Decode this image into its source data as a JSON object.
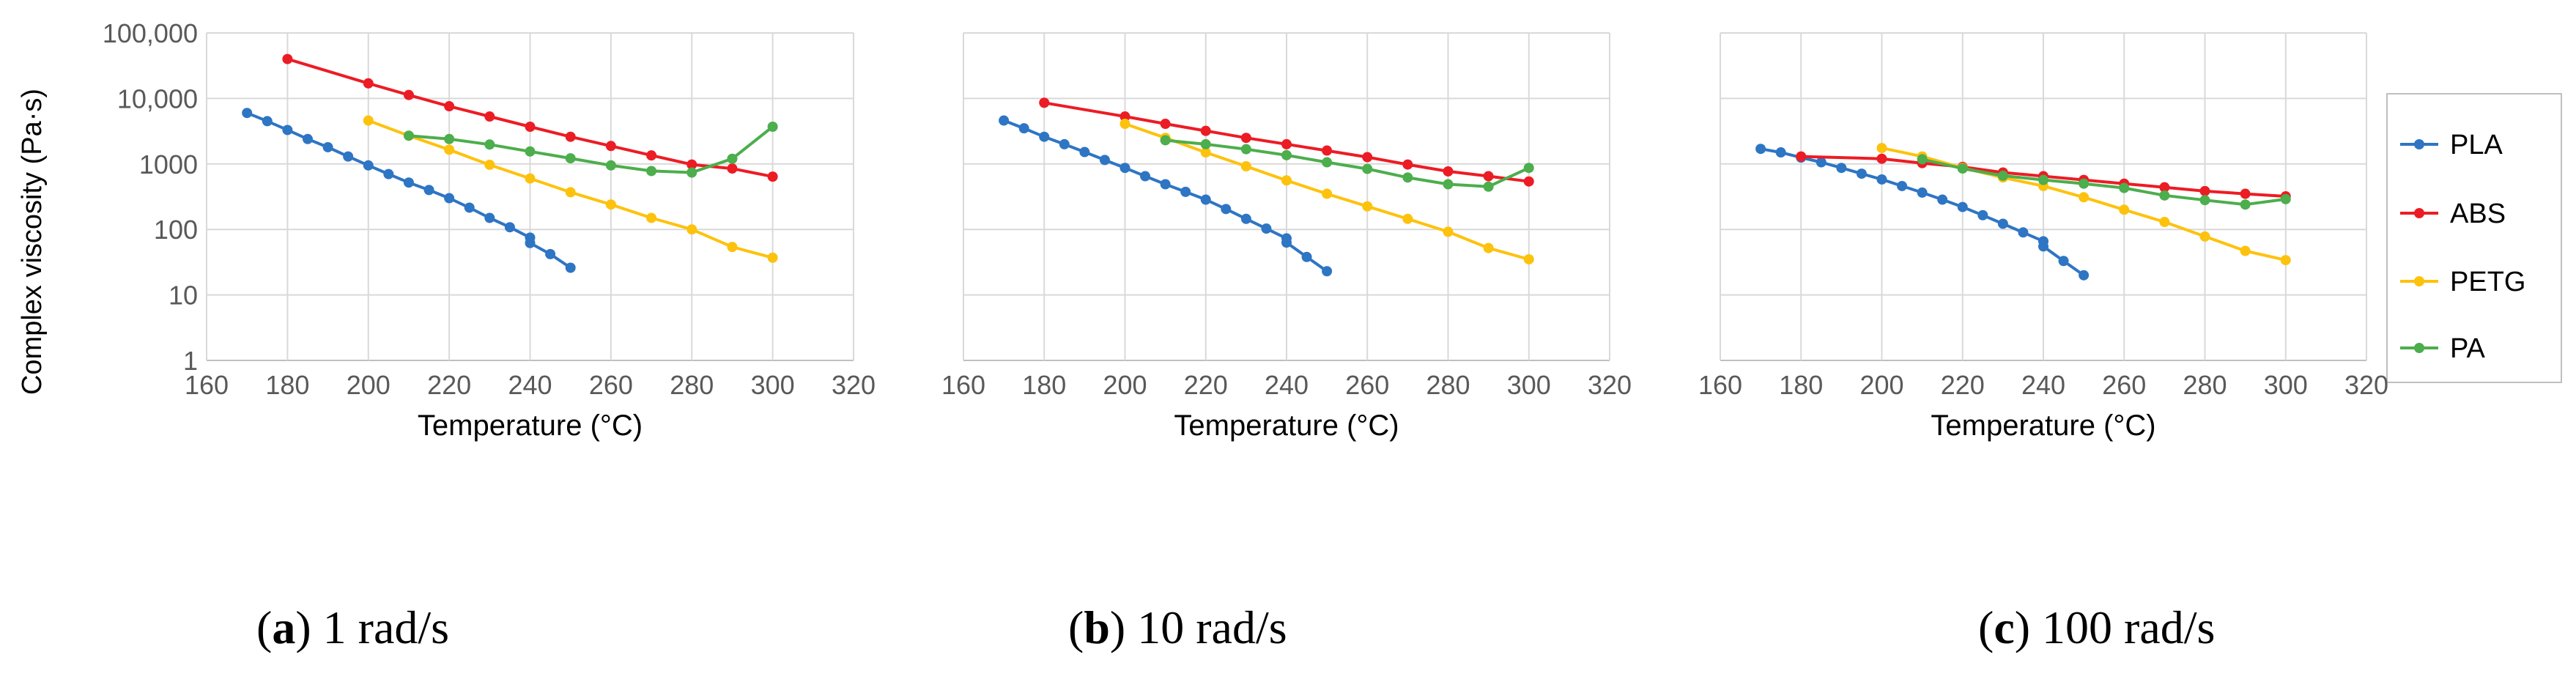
{
  "figure": {
    "ylabel": "Complex viscosity (Pa·s)",
    "legend_position": "right"
  },
  "colors": {
    "PLA": "#2e75c4",
    "ABS": "#ec1c24",
    "PETG": "#fdc20d",
    "PA": "#4cae4c",
    "grid": "#d9d9d9",
    "tick": "#595959",
    "legend_border": "#bfbfbf"
  },
  "chart_data": [
    {
      "type": "line",
      "panel": "a",
      "caption": {
        "letter": "a",
        "text": " 1 rad/s"
      },
      "xlabel": "Temperature (°C)",
      "ylabel": "Complex viscosity (Pa·s)",
      "xlim": [
        160,
        320
      ],
      "xticks": [
        160,
        180,
        200,
        220,
        240,
        260,
        280,
        300,
        320
      ],
      "ylim": [
        1,
        100000
      ],
      "yscale": "log",
      "yticks": [
        1,
        10,
        100,
        1000,
        10000,
        100000
      ],
      "ytick_labels": [
        "1",
        "10",
        "100",
        "1000",
        "10,000",
        "100,000"
      ],
      "grid": true,
      "series": [
        {
          "name": "PLA",
          "x": [
            170,
            175,
            180,
            185,
            190,
            195,
            200,
            205,
            210,
            215,
            220,
            225,
            230,
            235,
            240,
            240,
            245,
            250
          ],
          "y": [
            6000,
            4500,
            3300,
            2400,
            1800,
            1300,
            950,
            700,
            520,
            400,
            300,
            215,
            150,
            108,
            75,
            62,
            42,
            26
          ]
        },
        {
          "name": "ABS",
          "x": [
            180,
            200,
            210,
            220,
            230,
            240,
            250,
            260,
            270,
            280,
            290,
            300
          ],
          "y": [
            40000,
            17000,
            11300,
            7600,
            5300,
            3700,
            2600,
            1880,
            1350,
            980,
            850,
            640
          ]
        },
        {
          "name": "PETG",
          "x": [
            200,
            210,
            220,
            230,
            240,
            250,
            260,
            270,
            280,
            290,
            300
          ],
          "y": [
            4600,
            2700,
            1650,
            970,
            600,
            370,
            240,
            150,
            100,
            54,
            37
          ]
        },
        {
          "name": "PA",
          "x": [
            210,
            220,
            230,
            240,
            250,
            260,
            270,
            280,
            290,
            300
          ],
          "y": [
            2700,
            2400,
            1980,
            1550,
            1220,
            950,
            780,
            740,
            1200,
            3700
          ]
        }
      ]
    },
    {
      "type": "line",
      "panel": "b",
      "caption": {
        "letter": "b",
        "text": " 10 rad/s"
      },
      "xlabel": "Temperature (°C)",
      "ylabel": "",
      "xlim": [
        160,
        320
      ],
      "xticks": [
        160,
        180,
        200,
        220,
        240,
        260,
        280,
        300,
        320
      ],
      "ylim": [
        1,
        100000
      ],
      "yscale": "log",
      "grid": true,
      "series": [
        {
          "name": "PLA",
          "x": [
            170,
            175,
            180,
            185,
            190,
            195,
            200,
            205,
            210,
            215,
            220,
            225,
            230,
            235,
            240,
            240,
            245,
            250
          ],
          "y": [
            4600,
            3500,
            2600,
            2000,
            1520,
            1150,
            870,
            650,
            490,
            375,
            285,
            205,
            145,
            103,
            73,
            63,
            38,
            23
          ]
        },
        {
          "name": "ABS",
          "x": [
            180,
            200,
            210,
            220,
            230,
            240,
            250,
            260,
            270,
            280,
            290,
            300
          ],
          "y": [
            8600,
            5300,
            4100,
            3200,
            2500,
            2000,
            1600,
            1270,
            980,
            770,
            650,
            540
          ]
        },
        {
          "name": "PETG",
          "x": [
            200,
            210,
            220,
            230,
            240,
            250,
            260,
            270,
            280,
            290,
            300
          ],
          "y": [
            4100,
            2500,
            1500,
            920,
            560,
            350,
            225,
            145,
            92,
            52,
            35
          ]
        },
        {
          "name": "PA",
          "x": [
            210,
            220,
            230,
            240,
            250,
            260,
            270,
            280,
            290,
            300
          ],
          "y": [
            2300,
            2000,
            1680,
            1360,
            1060,
            840,
            620,
            490,
            450,
            870
          ]
        }
      ]
    },
    {
      "type": "line",
      "panel": "c",
      "caption": {
        "letter": "c",
        "text": " 100 rad/s"
      },
      "xlabel": "Temperature (°C)",
      "ylabel": "",
      "xlim": [
        160,
        320
      ],
      "xticks": [
        160,
        180,
        200,
        220,
        240,
        260,
        280,
        300,
        320
      ],
      "ylim": [
        1,
        100000
      ],
      "yscale": "log",
      "grid": true,
      "series": [
        {
          "name": "PLA",
          "x": [
            170,
            175,
            180,
            185,
            190,
            195,
            200,
            205,
            210,
            215,
            220,
            225,
            230,
            235,
            240,
            240,
            245,
            250
          ],
          "y": [
            1700,
            1500,
            1250,
            1060,
            870,
            710,
            580,
            460,
            365,
            285,
            220,
            165,
            122,
            90,
            66,
            55,
            33,
            20
          ]
        },
        {
          "name": "ABS",
          "x": [
            180,
            200,
            210,
            220,
            230,
            240,
            250,
            260,
            270,
            280,
            290,
            300
          ],
          "y": [
            1300,
            1200,
            1030,
            900,
            740,
            650,
            570,
            500,
            440,
            385,
            350,
            320
          ]
        },
        {
          "name": "PETG",
          "x": [
            200,
            210,
            220,
            230,
            240,
            250,
            260,
            270,
            280,
            290,
            300
          ],
          "y": [
            1750,
            1300,
            870,
            620,
            460,
            310,
            200,
            130,
            78,
            47,
            34
          ]
        },
        {
          "name": "PA",
          "x": [
            210,
            220,
            230,
            240,
            250,
            260,
            270,
            280,
            290,
            300
          ],
          "y": [
            1180,
            850,
            660,
            570,
            500,
            430,
            330,
            280,
            240,
            290
          ]
        }
      ]
    }
  ]
}
